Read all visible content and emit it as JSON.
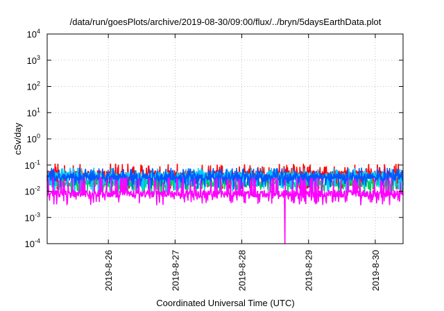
{
  "chart_data": {
    "type": "line",
    "title": "/data/run/goesPlots/archive/2019-08-30/09:00/flux/../bryn/5daysEarthData.plot",
    "xlabel": "Coordinated Universal Time (UTC)",
    "ylabel": "cSv/day",
    "yscale": "log",
    "ylim": [
      0.0001,
      10000
    ],
    "xlim": [
      "2019-08-25 02:00",
      "2019-08-30 10:00"
    ],
    "grid": true,
    "legend": "none",
    "y_ticks": [
      {
        "base": "10",
        "exp": "-4",
        "value": 0.0001
      },
      {
        "base": "10",
        "exp": "-3",
        "value": 0.001
      },
      {
        "base": "10",
        "exp": "-2",
        "value": 0.01
      },
      {
        "base": "10",
        "exp": "-1",
        "value": 0.1
      },
      {
        "base": "10",
        "exp": "0",
        "value": 1
      },
      {
        "base": "10",
        "exp": "1",
        "value": 10
      },
      {
        "base": "10",
        "exp": "2",
        "value": 100
      },
      {
        "base": "10",
        "exp": "3",
        "value": 1000
      },
      {
        "base": "10",
        "exp": "4",
        "value": 10000
      }
    ],
    "x_ticks": [
      {
        "label": "2019-8-26",
        "value": "2019-08-26 00:00"
      },
      {
        "label": "2019-8-27",
        "value": "2019-08-27 00:00"
      },
      {
        "label": "2019-8-28",
        "value": "2019-08-28 00:00"
      },
      {
        "label": "2019-8-29",
        "value": "2019-08-29 00:00"
      },
      {
        "label": "2019-8-30",
        "value": "2019-08-30 00:00"
      }
    ],
    "series": [
      {
        "color": "#ff0000",
        "baseline": 0.045,
        "peak": 0.1,
        "dip": 0.02
      },
      {
        "color": "#00cc66",
        "baseline": 0.02,
        "peak": 0.04,
        "dip": 0.012
      },
      {
        "color": "#00ccff",
        "baseline": 0.04,
        "peak": 0.07,
        "dip": 0.015
      },
      {
        "color": "#0055ff",
        "baseline": 0.035,
        "peak": 0.07,
        "dip": 0.02
      },
      {
        "color": "#ff00ff",
        "baseline": 0.008,
        "peak": 0.03,
        "dip": 0.005,
        "outlier": {
          "x": "2019-08-28 15:30",
          "y": 0.0001
        }
      }
    ]
  }
}
